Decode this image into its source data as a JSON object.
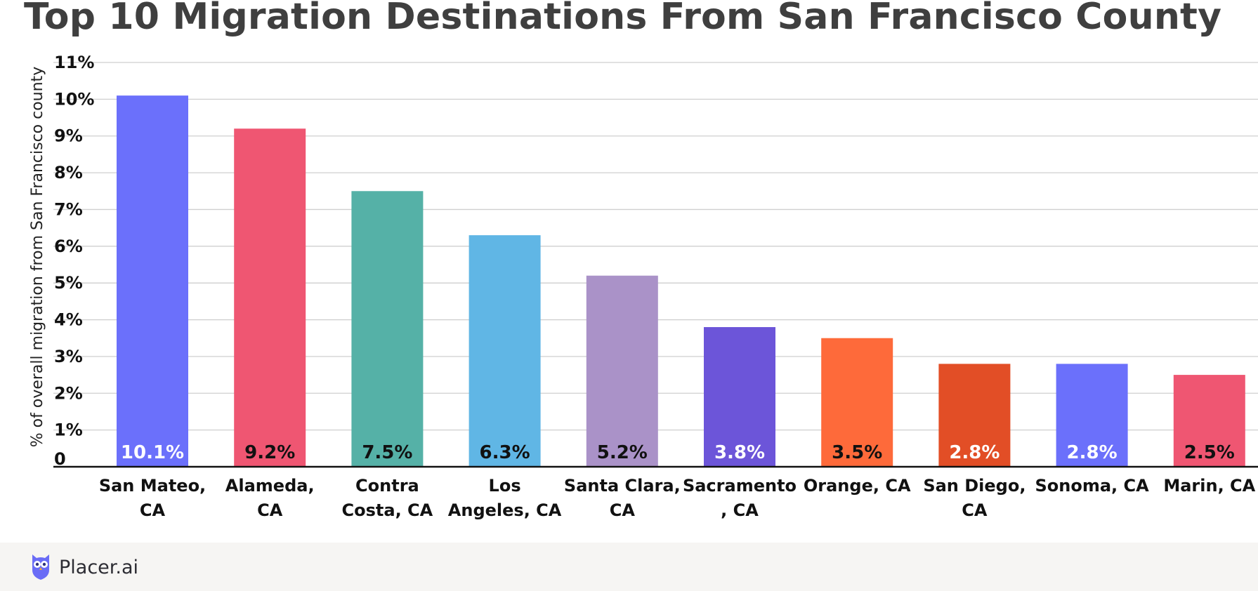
{
  "title": "Top 10 Migration Destinations From San Francisco County",
  "brand": {
    "name": "Placer.ai",
    "icon": "owl-logo-icon",
    "icon_color": "#6a6cf6"
  },
  "chart_data": {
    "type": "bar",
    "title": "Top 10 Migration Destinations From San Francisco County",
    "xlabel": "",
    "ylabel": "% of overall migration from San Francisco county",
    "categories": [
      [
        "San Mateo,",
        "CA"
      ],
      [
        "Alameda,",
        "CA"
      ],
      [
        "Contra",
        "Costa, CA"
      ],
      [
        "Los",
        "Angeles, CA"
      ],
      [
        "Santa Clara,",
        "CA"
      ],
      [
        "Sacramento",
        ", CA"
      ],
      [
        "Orange, CA"
      ],
      [
        "San Diego,",
        "CA"
      ],
      [
        "Sonoma, CA"
      ],
      [
        "Marin, CA"
      ]
    ],
    "values": [
      10.1,
      9.2,
      7.5,
      6.3,
      5.2,
      3.8,
      3.5,
      2.8,
      2.8,
      2.5
    ],
    "data_labels": [
      "10.1%",
      "9.2%",
      "7.5%",
      "6.3%",
      "5.2%",
      "3.8%",
      "3.5%",
      "2.8%",
      "2.8%",
      "2.5%"
    ],
    "colors": [
      "#6b70fb",
      "#ef5672",
      "#55b1a7",
      "#60b6e5",
      "#aa92c8",
      "#6c55d9",
      "#fe6a3a",
      "#e24e26",
      "#6b70fb",
      "#ef5672"
    ],
    "label_colors": [
      "#ffffff",
      "#111111",
      "#111111",
      "#111111",
      "#111111",
      "#ffffff",
      "#111111",
      "#ffffff",
      "#ffffff",
      "#111111"
    ],
    "ylim": [
      0,
      11
    ],
    "yticks": [
      0,
      1,
      2,
      3,
      4,
      5,
      6,
      7,
      8,
      9,
      10,
      11
    ],
    "ytick_labels": [
      "0",
      "1%",
      "2%",
      "3%",
      "4%",
      "5%",
      "6%",
      "7%",
      "8%",
      "9%",
      "10%",
      "11%"
    ],
    "grid": true,
    "legend": "none"
  }
}
